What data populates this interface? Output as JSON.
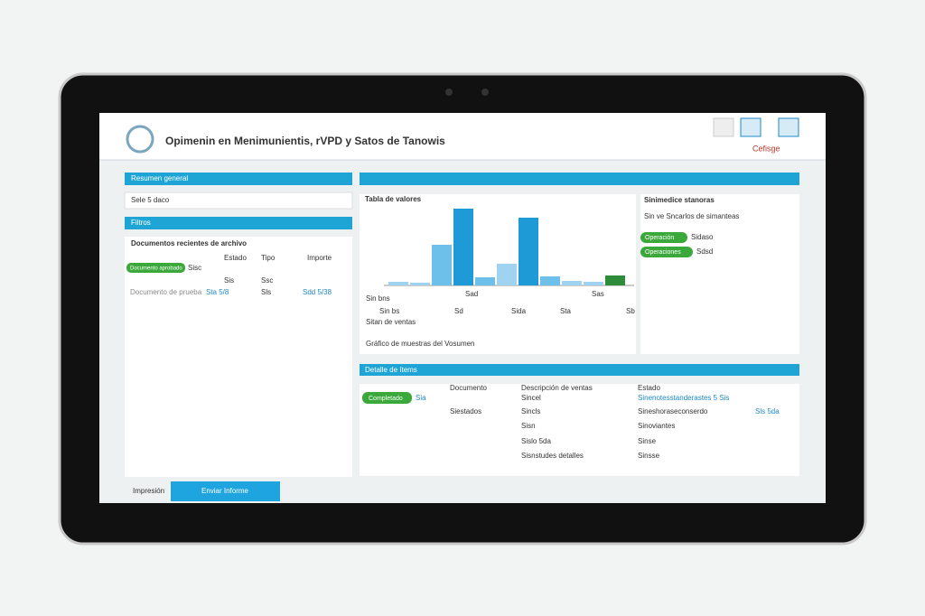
{
  "header": {
    "title": "Opimenin en Menimunientis, rVPD y Satos de Tanowis",
    "user": "Cefisge"
  },
  "left": {
    "panel1_title": "Resumen general",
    "search": "Sele 5 daco",
    "panel2_title": "Filtros",
    "table_title": "Documentos recientes de archivo",
    "columns": [
      "Estado",
      "Tipo",
      "Importe"
    ],
    "badge": "Documento aprobado",
    "rows": [
      [
        "Sisc",
        "Sis",
        "Ssc"
      ],
      [
        "Documento de prueba",
        "Sta 5/8",
        "Sls",
        "Sdd 5/38"
      ]
    ]
  },
  "chart": {
    "type": "bar",
    "title": "Tabla de valores",
    "values": [
      4,
      3,
      45,
      85,
      9,
      24,
      75,
      10,
      5,
      4,
      11
    ],
    "colors": [
      "#9fd3ef",
      "#9fd3ef",
      "#6cc0ea",
      "#1e9bd7",
      "#6cc0ea",
      "#9fd3ef",
      "#1e9bd7",
      "#6cc0ea",
      "#9fd3ef",
      "#9fd3ef",
      "#2e8b3a"
    ],
    "ylim": [
      0,
      100
    ],
    "x_labels": [
      "Sad",
      "Sas"
    ],
    "legend": "Sin bns",
    "row": [
      "Sin bs",
      "Sd",
      "Sida",
      "Sta",
      "Sb"
    ],
    "subtitle": "Sitan de ventas",
    "footer": "Gráfico de muestras del Vosumen"
  },
  "right": {
    "title": "Sinimedice stanoras",
    "line": "Sin ve Sncarlos de simanteas",
    "badges": [
      "Operación",
      "Operaciones"
    ],
    "notes": [
      "Sidaso",
      "Sdsd"
    ]
  },
  "lower": {
    "title": "Detalle de ítems",
    "badge": "Completado",
    "columns": [
      "Documento",
      "Descripción de ventas",
      "Estado"
    ],
    "rows": [
      [
        "Sia",
        "Sincel",
        "Sinenotesstanderastes 5 Sis"
      ],
      [
        "Siestados",
        "Sincls",
        "Sineshoraseconserdo",
        "Sls 5da"
      ],
      [
        "Sisn",
        "Sinoviantes"
      ],
      [
        "Sislo 5da",
        "Sinse"
      ],
      [
        "Sisnstudes detalles",
        "Sinsse"
      ]
    ]
  },
  "footer": {
    "print": "Impresión",
    "button": "Enviar Informe"
  }
}
